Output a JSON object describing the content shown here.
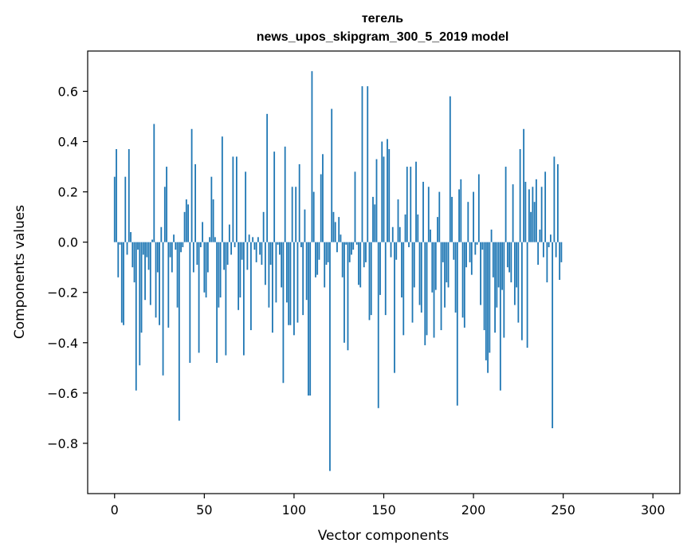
{
  "chart_data": {
    "type": "bar",
    "title": "тегель",
    "subtitle": "news_upos_skipgram_300_5_2019 model",
    "xlabel": "Vector components",
    "ylabel": "Components values",
    "xlim": [
      -15,
      315
    ],
    "ylim": [
      -1.0,
      0.76
    ],
    "xticks": [
      0,
      50,
      100,
      150,
      200,
      250,
      300
    ],
    "yticks": [
      -0.8,
      -0.6,
      -0.4,
      -0.2,
      0.0,
      0.2,
      0.4,
      0.6
    ],
    "ytick_labels": [
      "−0.8",
      "−0.6",
      "−0.4",
      "−0.2",
      "0.0",
      "0.2",
      "0.4",
      "0.6"
    ],
    "bar_color": "#1f77b4",
    "grid": false,
    "values": [
      0.26,
      0.37,
      -0.14,
      -0.01,
      -0.32,
      -0.33,
      0.26,
      -0.05,
      0.37,
      0.04,
      -0.1,
      -0.16,
      -0.59,
      -0.03,
      -0.49,
      -0.36,
      -0.05,
      -0.23,
      -0.06,
      -0.11,
      -0.25,
      0.01,
      0.47,
      -0.3,
      -0.12,
      -0.33,
      0.06,
      -0.53,
      0.22,
      0.3,
      -0.34,
      -0.06,
      -0.12,
      0.03,
      -0.03,
      -0.26,
      -0.71,
      -0.04,
      -0.02,
      0.12,
      0.17,
      0.15,
      -0.48,
      0.45,
      -0.12,
      0.31,
      -0.09,
      -0.44,
      -0.02,
      0.08,
      -0.2,
      -0.22,
      -0.12,
      0.02,
      0.26,
      0.17,
      0.02,
      -0.48,
      -0.26,
      -0.22,
      0.42,
      -0.11,
      -0.45,
      -0.09,
      0.07,
      -0.05,
      0.34,
      -0.02,
      0.34,
      -0.27,
      -0.22,
      -0.07,
      -0.45,
      0.28,
      -0.11,
      0.03,
      -0.35,
      0.02,
      -0.03,
      -0.08,
      0.02,
      -0.05,
      -0.09,
      0.12,
      -0.17,
      0.51,
      -0.26,
      -0.09,
      -0.36,
      0.36,
      -0.24,
      -0.01,
      -0.05,
      -0.18,
      -0.56,
      0.38,
      -0.24,
      -0.33,
      -0.33,
      0.22,
      -0.37,
      0.22,
      -0.32,
      0.31,
      -0.02,
      -0.29,
      0.13,
      -0.23,
      -0.61,
      -0.61,
      0.68,
      0.2,
      -0.14,
      -0.13,
      -0.07,
      0.27,
      0.35,
      -0.18,
      -0.09,
      -0.08,
      -0.91,
      0.53,
      0.12,
      0.08,
      -0.04,
      0.1,
      0.03,
      -0.14,
      -0.4,
      -0.01,
      -0.43,
      -0.08,
      -0.05,
      -0.03,
      0.28,
      -0.01,
      -0.17,
      -0.18,
      0.62,
      -0.1,
      -0.08,
      0.62,
      -0.31,
      -0.29,
      0.18,
      0.15,
      0.33,
      -0.66,
      -0.21,
      0.4,
      0.34,
      -0.29,
      0.41,
      0.37,
      -0.06,
      0.06,
      -0.52,
      -0.07,
      0.17,
      0.06,
      -0.22,
      -0.37,
      0.11,
      0.3,
      -0.02,
      0.3,
      -0.32,
      -0.18,
      0.32,
      0.11,
      -0.25,
      -0.28,
      0.24,
      -0.41,
      -0.37,
      0.22,
      0.05,
      -0.2,
      -0.38,
      -0.19,
      0.1,
      0.2,
      -0.35,
      -0.08,
      -0.26,
      -0.16,
      -0.18,
      0.58,
      0.18,
      -0.07,
      -0.28,
      -0.65,
      0.21,
      0.25,
      -0.3,
      -0.34,
      -0.1,
      0.16,
      -0.08,
      -0.13,
      0.2,
      -0.05,
      -0.01,
      0.27,
      -0.25,
      -0.03,
      -0.35,
      -0.47,
      -0.52,
      -0.44,
      0.05,
      -0.14,
      -0.36,
      -0.26,
      -0.18,
      -0.59,
      -0.19,
      -0.38,
      0.3,
      -0.1,
      -0.12,
      -0.16,
      0.23,
      -0.25,
      -0.18,
      -0.32,
      0.37,
      -0.39,
      0.45,
      0.24,
      -0.42,
      0.21,
      0.12,
      0.22,
      0.16,
      0.25,
      -0.09,
      0.05,
      0.22,
      -0.06,
      0.28,
      -0.16,
      -0.02,
      0.03,
      -0.74,
      0.34,
      -0.06,
      0.31,
      -0.15,
      -0.08
    ]
  }
}
